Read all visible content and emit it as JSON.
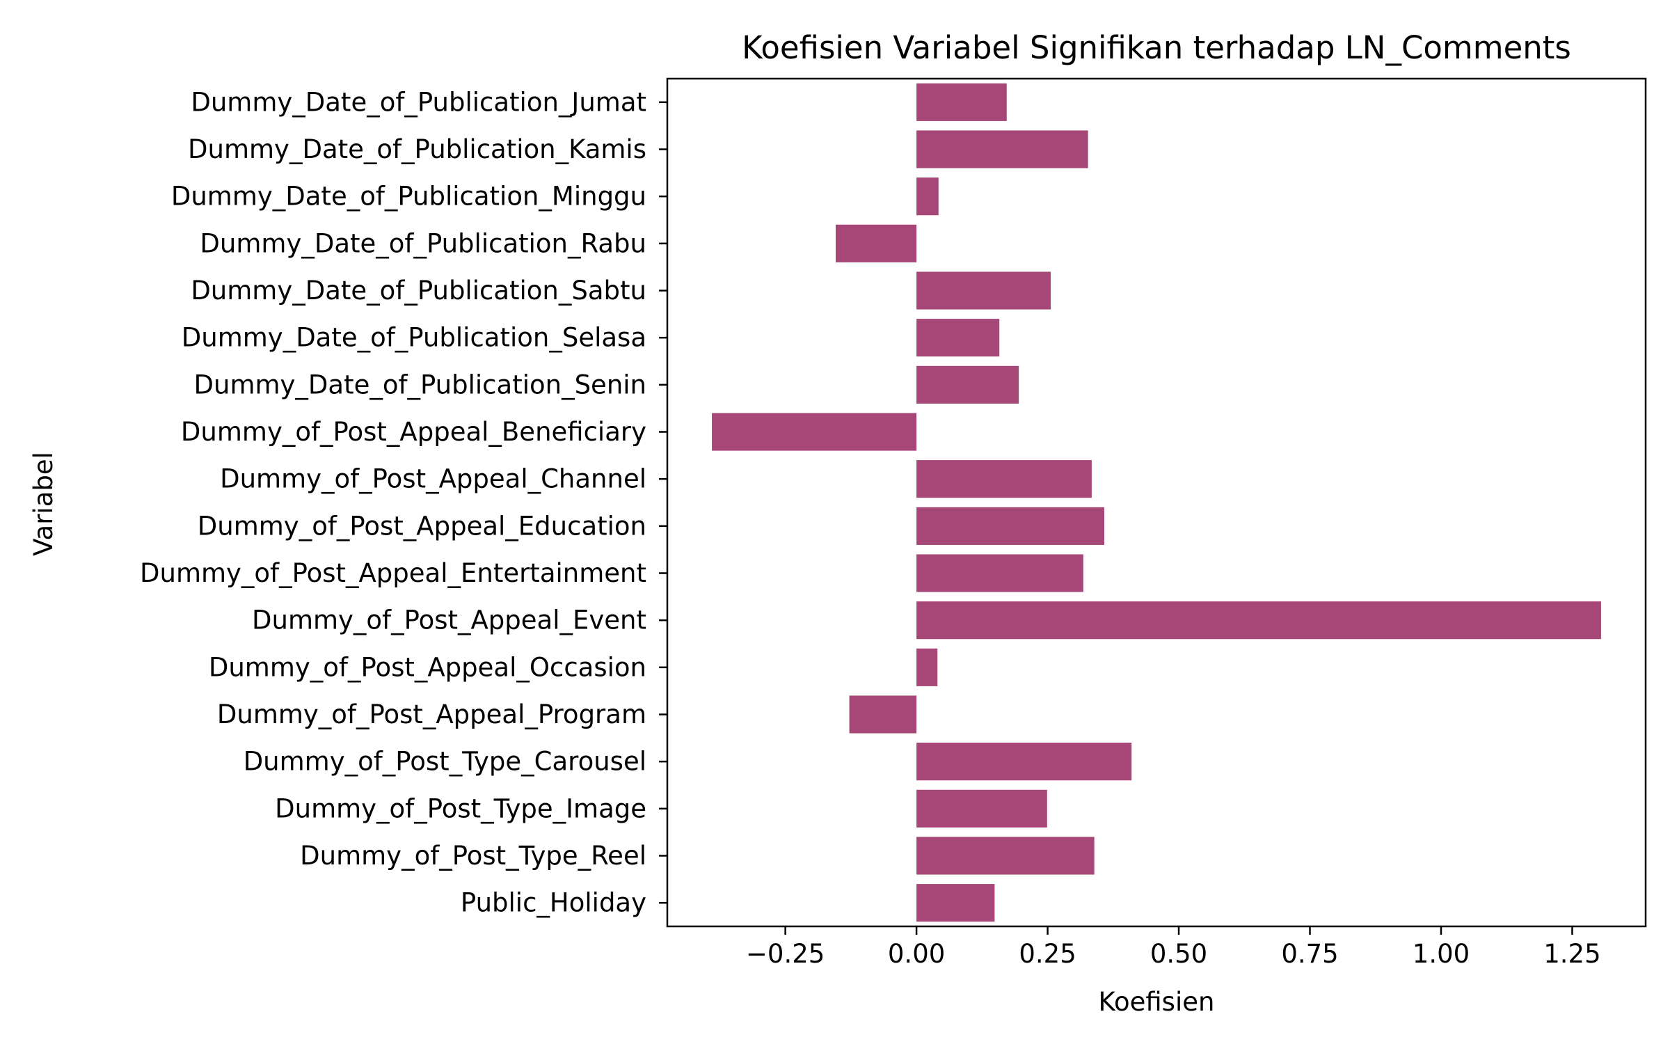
{
  "chart_data": {
    "type": "bar",
    "orientation": "horizontal",
    "title": "Koefisien Variabel Signifikan terhadap LN_Comments",
    "xlabel": "Koefisien",
    "ylabel": "Variabel",
    "categories": [
      "Dummy_Date_of_Publication_Jumat",
      "Dummy_Date_of_Publication_Kamis",
      "Dummy_Date_of_Publication_Minggu",
      "Dummy_Date_of_Publication_Rabu",
      "Dummy_Date_of_Publication_Sabtu",
      "Dummy_Date_of_Publication_Selasa",
      "Dummy_Date_of_Publication_Senin",
      "Dummy_of_Post_Appeal_Beneficiary",
      "Dummy_of_Post_Appeal_Channel",
      "Dummy_of_Post_Appeal_Education",
      "Dummy_of_Post_Appeal_Entertainment",
      "Dummy_of_Post_Appeal_Event",
      "Dummy_of_Post_Appeal_Occasion",
      "Dummy_of_Post_Appeal_Program",
      "Dummy_of_Post_Type_Carousel",
      "Dummy_of_Post_Type_Image",
      "Dummy_of_Post_Type_Reel",
      "Public_Holiday"
    ],
    "values": [
      0.172,
      0.327,
      0.042,
      -0.154,
      0.256,
      0.158,
      0.195,
      -0.39,
      0.334,
      0.358,
      0.318,
      1.305,
      0.04,
      -0.128,
      0.41,
      0.249,
      0.339,
      0.149
    ],
    "xlim": [
      -0.475,
      1.39
    ],
    "xticks": [
      -0.25,
      0.0,
      0.25,
      0.5,
      0.75,
      1.0,
      1.25
    ],
    "xtick_labels": [
      "−0.25",
      "0.00",
      "0.25",
      "0.50",
      "0.75",
      "1.00",
      "1.25"
    ],
    "bar_color": "#a64778",
    "grid": false,
    "legend": "none"
  }
}
